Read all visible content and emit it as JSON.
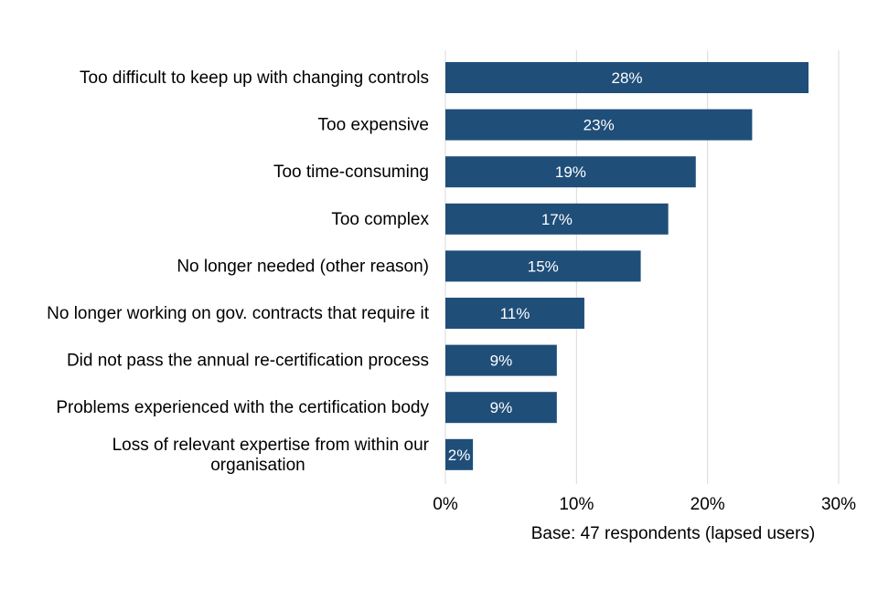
{
  "chart_data": {
    "type": "bar",
    "orientation": "horizontal",
    "categories": [
      [
        "Too difficult to keep up with changing controls"
      ],
      [
        "Too expensive"
      ],
      [
        "Too time-consuming"
      ],
      [
        "Too complex"
      ],
      [
        "No longer needed (other reason)"
      ],
      [
        "No longer working on gov. contracts that require it"
      ],
      [
        "Did not pass the annual re-certification process"
      ],
      [
        "Problems experienced with the certification body"
      ],
      [
        "Loss of relevant expertise from within our",
        "organisation"
      ]
    ],
    "values": [
      27.7,
      23.4,
      19.1,
      17.0,
      14.9,
      10.6,
      8.5,
      8.5,
      2.1
    ],
    "data_labels": [
      "28%",
      "23%",
      "19%",
      "17%",
      "15%",
      "11%",
      "9%",
      "9%",
      "2%"
    ],
    "xlim": [
      0,
      30
    ],
    "x_ticks": [
      0,
      10,
      20,
      30
    ],
    "x_tick_labels": [
      "0%",
      "10%",
      "20%",
      "30%"
    ],
    "xlabel": "Base: 47 respondents (lapsed users)",
    "grid": "vertical",
    "bar_color": "#1f4e79"
  }
}
